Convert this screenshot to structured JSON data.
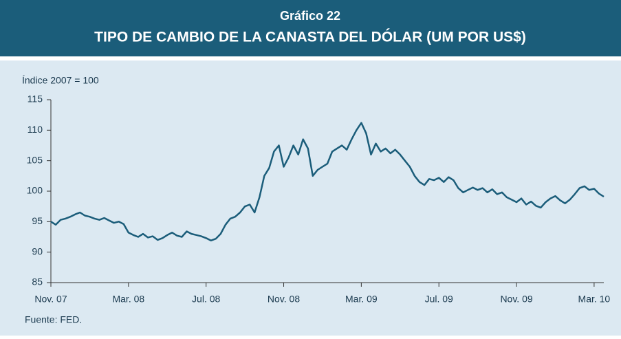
{
  "chart_data": {
    "type": "line",
    "title": "Gráfico 22",
    "subtitle": "TIPO DE CAMBIO DE LA CANASTA DEL DÓLAR (UM POR US$)",
    "y_label": "Índice 2007 = 100",
    "source": "Fuente: FED.",
    "color": "#1b5d7a",
    "categories": [
      "Nov. 07",
      null,
      null,
      null,
      null,
      null,
      null,
      null,
      null,
      null,
      null,
      null,
      null,
      null,
      null,
      null,
      "Mar. 08",
      null,
      null,
      null,
      null,
      null,
      null,
      null,
      null,
      null,
      null,
      null,
      null,
      null,
      null,
      null,
      "Jul. 08",
      null,
      null,
      null,
      null,
      null,
      null,
      null,
      null,
      null,
      null,
      null,
      null,
      null,
      null,
      null,
      "Nov. 08",
      null,
      null,
      null,
      null,
      null,
      null,
      null,
      null,
      null,
      null,
      null,
      null,
      null,
      null,
      null,
      "Mar. 09",
      null,
      null,
      null,
      null,
      null,
      null,
      null,
      null,
      null,
      null,
      null,
      null,
      null,
      null,
      null,
      "Jul. 09",
      null,
      null,
      null,
      null,
      null,
      null,
      null,
      null,
      null,
      null,
      null,
      null,
      null,
      null,
      null,
      "Nov. 09",
      null,
      null,
      null,
      null,
      null,
      null,
      null,
      null,
      null,
      null,
      null,
      null,
      null,
      null,
      null,
      "Mar. 10",
      null,
      null
    ],
    "values": [
      95,
      94.5,
      95.3,
      95.5,
      95.8,
      96.2,
      96.5,
      96,
      95.8,
      95.5,
      95.3,
      95.6,
      95.2,
      94.8,
      95,
      94.6,
      93.2,
      92.8,
      92.5,
      93,
      92.4,
      92.6,
      92,
      92.3,
      92.8,
      93.2,
      92.7,
      92.5,
      93.4,
      93,
      92.8,
      92.6,
      92.3,
      91.9,
      92.2,
      93,
      94.5,
      95.5,
      95.8,
      96.5,
      97.5,
      97.8,
      96.5,
      99,
      102.5,
      103.8,
      106.5,
      107.5,
      104,
      105.5,
      107.5,
      106,
      108.5,
      107,
      102.5,
      103.5,
      104,
      104.5,
      106.5,
      107,
      107.5,
      106.8,
      108.5,
      110,
      111.2,
      109.5,
      106,
      107.8,
      106.5,
      107,
      106.2,
      106.8,
      106,
      105,
      104,
      102.5,
      101.5,
      101,
      102,
      101.8,
      102.2,
      101.5,
      102.3,
      101.8,
      100.5,
      99.8,
      100.2,
      100.6,
      100.2,
      100.5,
      99.8,
      100.3,
      99.5,
      99.8,
      99,
      98.6,
      98.2,
      98.8,
      97.8,
      98.3,
      97.6,
      97.3,
      98.2,
      98.8,
      99.2,
      98.5,
      98,
      98.6,
      99.5,
      100.5,
      100.8,
      100.2,
      100.4,
      99.6,
      99.1
    ],
    "ylim": [
      85,
      115
    ],
    "yticks": [
      85,
      90,
      95,
      100,
      105,
      110,
      115
    ]
  }
}
